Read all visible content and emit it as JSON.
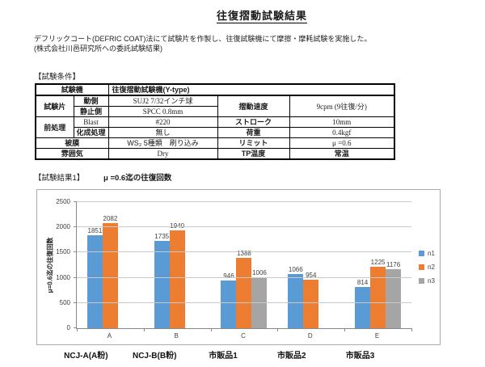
{
  "page": {
    "title": "往復摺動試験結果",
    "intro_line1": "デフリックコート(DEFRIC COAT)法にて試験片を作製し、往復試験機にて摩擦・摩耗試験を実施した。",
    "intro_line2": "(株式会社川邑研究所への委託試験結果)",
    "conditions_header": "【試験条件】",
    "results_header": "【試験結果1】",
    "results_subtitle": "μ =0.6迄の往復回数"
  },
  "conditions_table": {
    "machine_label": "試験機",
    "machine_value": "往復摺動試験機(Y-type)",
    "specimen_label": "試験片",
    "moving_label": "動側",
    "moving_value": "SUJ2 7/32インチ球",
    "static_label": "静止側",
    "static_value": "SPCC 0.8mm",
    "pretreat_label": "前処理",
    "blast_label": "Blast",
    "blast_value": "#220",
    "chem_label": "化成処理",
    "chem_value": "無し",
    "coating_label": "被膜",
    "coating_value": "WS₂ 5種類　刷り込み",
    "atmosphere_label": "雰囲気",
    "atmosphere_value": "Dry",
    "speed_label": "摺動速度",
    "speed_value": "9cpm (9往復/分)",
    "stroke_label": "ストローク",
    "stroke_value": "10mm",
    "load_label": "荷重",
    "load_value": "0.4kgf",
    "limit_label": "リミット",
    "limit_value": "μ =0.6",
    "tp_label": "TP温度",
    "tp_value": "常温"
  },
  "chart_data": {
    "type": "bar",
    "title": "μ =0.6迄の往復回数",
    "ylabel": "μ=0.6迄の往復回数",
    "xlabel": "",
    "ylim": [
      0,
      2500
    ],
    "yticks": [
      0,
      500,
      1000,
      1500,
      2000,
      2500
    ],
    "grid": true,
    "legend_position": "right",
    "categories": [
      "A",
      "B",
      "C",
      "D",
      "E"
    ],
    "group_labels": [
      "NCJ-A(A粉)",
      "NCJ-B(B粉)",
      "市販品1",
      "市販品2",
      "市販品3"
    ],
    "series": [
      {
        "name": "n1",
        "color": "#5b9bd5",
        "values": [
          1851,
          1735,
          946,
          1066,
          814
        ]
      },
      {
        "name": "n2",
        "color": "#ed7d31",
        "values": [
          2082,
          1940,
          1388,
          954,
          1225
        ]
      },
      {
        "name": "n3",
        "color": "#a5a5a5",
        "values": [
          null,
          null,
          1006,
          null,
          1176
        ]
      }
    ]
  }
}
